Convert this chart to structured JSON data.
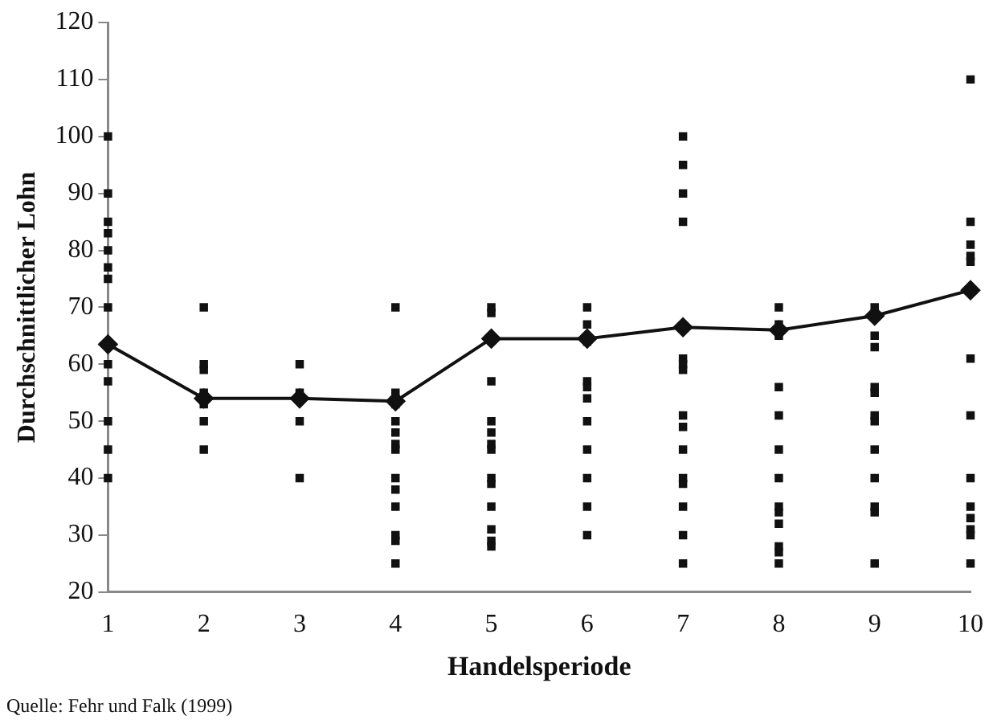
{
  "chart_data": {
    "type": "scatter",
    "xlabel": "Handelsperiode",
    "ylabel": "Durchschnittlicher Lohn",
    "xlim": [
      1,
      10
    ],
    "xticks": [
      1,
      2,
      3,
      4,
      5,
      6,
      7,
      8,
      9,
      10
    ],
    "ylim": [
      20,
      120
    ],
    "yticks": [
      20,
      30,
      40,
      50,
      60,
      70,
      80,
      90,
      100,
      110,
      120
    ],
    "grid": false,
    "legend": false,
    "annotations": [
      "Quelle: Fehr und Falk (1999)"
    ],
    "series": [
      {
        "type": "scatter",
        "marker": "square",
        "color": "#111111",
        "x": [
          1,
          1,
          1,
          1,
          1,
          1,
          1,
          1,
          1,
          1,
          1,
          1,
          1,
          2,
          2,
          2,
          2,
          2,
          2,
          2,
          3,
          3,
          3,
          3,
          4,
          4,
          4,
          4,
          4,
          4,
          4,
          4,
          4,
          4,
          4,
          4,
          4,
          5,
          5,
          5,
          5,
          5,
          5,
          5,
          5,
          5,
          5,
          5,
          5,
          5,
          6,
          6,
          6,
          6,
          6,
          6,
          6,
          6,
          6,
          6,
          6,
          7,
          7,
          7,
          7,
          7,
          7,
          7,
          7,
          7,
          7,
          7,
          7,
          7,
          7,
          7,
          8,
          8,
          8,
          8,
          8,
          8,
          8,
          8,
          8,
          8,
          8,
          8,
          8,
          9,
          9,
          9,
          9,
          9,
          9,
          9,
          9,
          9,
          9,
          9,
          9,
          10,
          10,
          10,
          10,
          10,
          10,
          10,
          10,
          10,
          10,
          10,
          10,
          10
        ],
        "values": [
          100,
          90,
          85,
          83,
          80,
          77,
          75,
          70,
          60,
          57,
          50,
          45,
          40,
          70,
          60,
          59,
          55,
          53,
          50,
          45,
          60,
          55,
          50,
          40,
          70,
          55,
          53,
          50,
          48,
          46,
          45,
          40,
          38,
          35,
          30,
          29,
          25,
          70,
          69,
          57,
          50,
          48,
          46,
          45,
          40,
          39,
          35,
          31,
          29,
          28,
          70,
          67,
          64,
          57,
          56,
          54,
          50,
          45,
          40,
          35,
          30,
          100,
          95,
          90,
          85,
          61,
          60,
          59,
          51,
          49,
          45,
          40,
          39,
          35,
          30,
          25,
          70,
          67,
          65,
          56,
          51,
          45,
          40,
          35,
          34,
          32,
          28,
          27,
          25,
          70,
          65,
          63,
          56,
          55,
          51,
          50,
          45,
          40,
          35,
          34,
          25,
          110,
          85,
          81,
          79,
          78,
          61,
          51,
          40,
          35,
          33,
          31,
          30,
          25
        ]
      },
      {
        "type": "line",
        "marker": "diamond",
        "line_style": "solid",
        "color": "#111111",
        "x": [
          1,
          2,
          3,
          4,
          5,
          6,
          7,
          8,
          9,
          10
        ],
        "values": [
          63.5,
          54,
          54,
          53.5,
          64.5,
          64.5,
          66.5,
          66,
          68.5,
          73
        ]
      }
    ]
  }
}
